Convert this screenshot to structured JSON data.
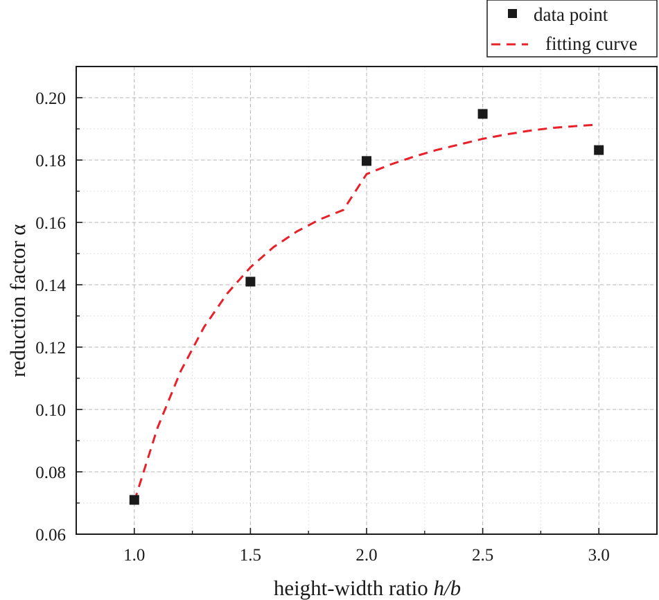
{
  "chart_data": {
    "type": "scatter",
    "xlabel": "height-width ratio ",
    "xlabel_italic": "h/b",
    "ylabel": "reduction factor α",
    "xlim": [
      0.75,
      3.25
    ],
    "ylim": [
      0.06,
      0.21
    ],
    "xticks": [
      1.0,
      1.5,
      2.0,
      2.5,
      3.0
    ],
    "yticks": [
      0.06,
      0.08,
      0.1,
      0.12,
      0.14,
      0.16,
      0.18,
      0.2
    ],
    "xtick_labels": [
      "1.0",
      "1.5",
      "2.0",
      "2.5",
      "3.0"
    ],
    "ytick_labels": [
      "0.06",
      "0.08",
      "0.10",
      "0.12",
      "0.14",
      "0.16",
      "0.18",
      "0.20"
    ],
    "grid": true,
    "legend_position": "top-right",
    "series": [
      {
        "name": "data point",
        "kind": "marker",
        "marker": "square",
        "color": "#1a1a1a",
        "x": [
          1.0,
          1.5,
          2.0,
          2.5,
          3.0
        ],
        "y": [
          0.071,
          0.141,
          0.1797,
          0.1948,
          0.1832
        ]
      },
      {
        "name": "fitting curve",
        "kind": "dashed-line",
        "color": "#e8202a",
        "x": [
          1.0,
          1.1,
          1.2,
          1.3,
          1.4,
          1.5,
          1.6,
          1.7,
          1.8,
          1.9,
          2.0,
          2.1,
          2.2,
          2.3,
          2.4,
          2.5,
          2.6,
          2.7,
          2.8,
          2.9,
          3.0
        ],
        "y": [
          0.0705,
          0.0941,
          0.1123,
          0.1264,
          0.1372,
          0.1456,
          0.1521,
          0.1571,
          0.161,
          0.164,
          0.1755,
          0.1785,
          0.181,
          0.1832,
          0.185,
          0.1868,
          0.1882,
          0.1894,
          0.1903,
          0.1909,
          0.1914
        ]
      }
    ]
  }
}
